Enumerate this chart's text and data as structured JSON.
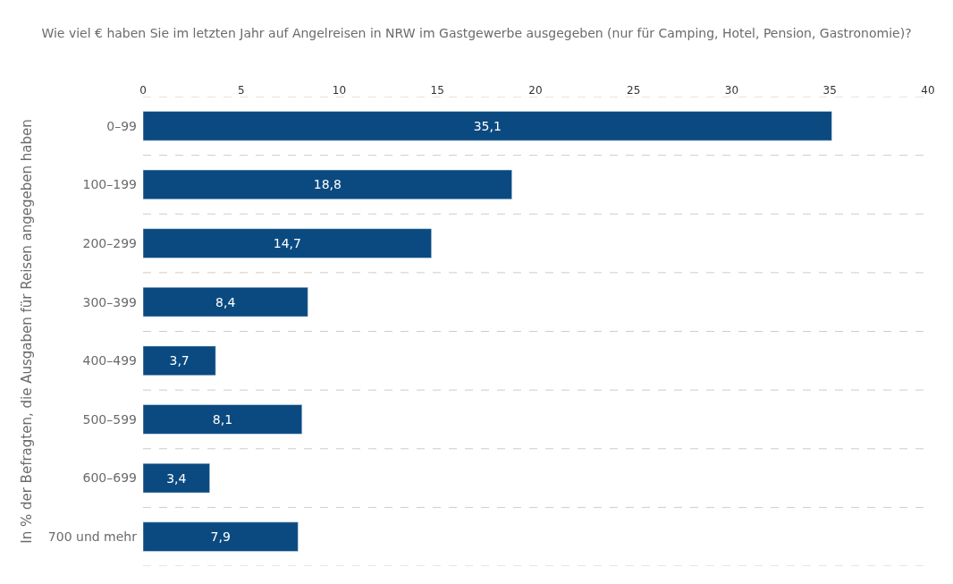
{
  "chart_data": {
    "type": "bar",
    "orientation": "horizontal",
    "title": "Wie viel € haben Sie im letzten Jahr auf Angelreisen in NRW im Gastgewerbe ausgegeben (nur für Camping, Hotel, Pension, Gastronomie)?",
    "ylabel": "In % der Befragten, die Ausgaben für Reisen angegeben haben",
    "categories": [
      "0–99",
      "100–199",
      "200–299",
      "300–399",
      "400–499",
      "500–599",
      "600–699",
      "700 und mehr"
    ],
    "values": [
      35.1,
      18.8,
      14.7,
      8.4,
      3.7,
      8.1,
      3.4,
      7.9
    ],
    "value_labels": [
      "35,1",
      "18,8",
      "14,7",
      "8,4",
      "3,7",
      "8,1",
      "3,4",
      "7,9"
    ],
    "color": "#0b4a80",
    "xlim": [
      0,
      40
    ],
    "xticks": [
      0,
      5,
      10,
      15,
      20,
      25,
      30,
      35,
      40
    ],
    "grid": "y",
    "legend": false
  }
}
